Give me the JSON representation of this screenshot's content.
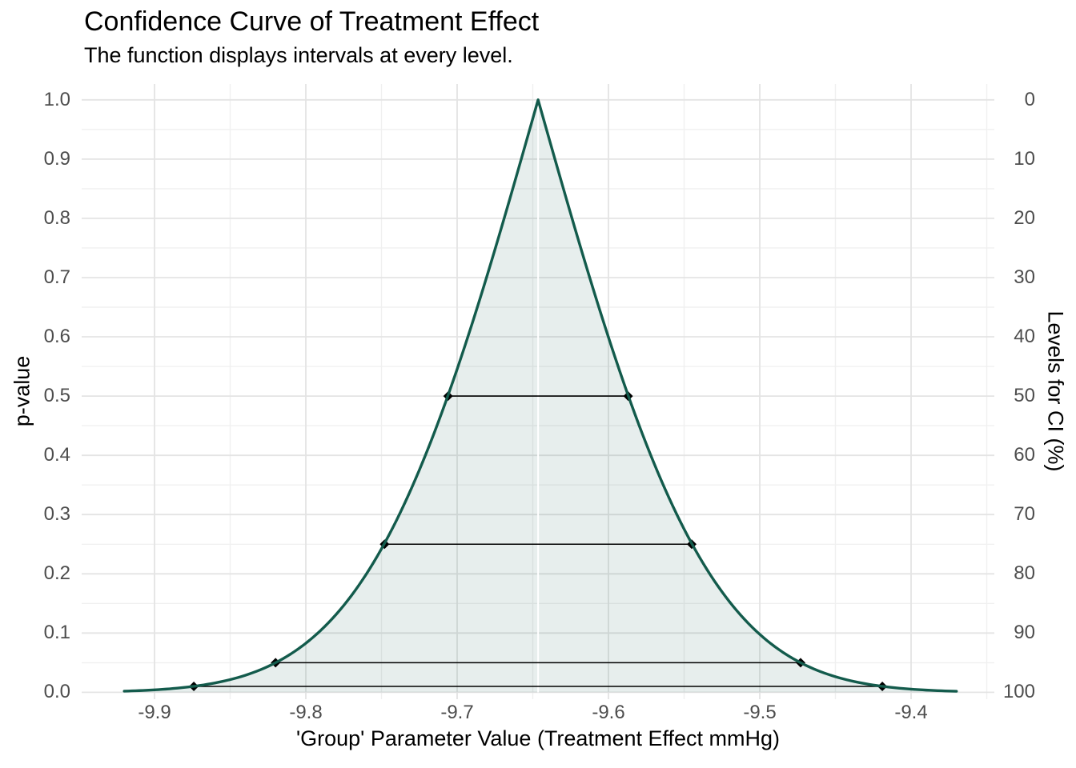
{
  "chart_data": {
    "type": "line",
    "title": "Confidence Curve of Treatment Effect",
    "subtitle": "The function displays intervals at every level.",
    "xlabel": "'Group' Parameter Value (Treatment Effect mmHg)",
    "ylabel_left": "p-value",
    "ylabel_right": "Levels for CI (%)",
    "x_tick_labels": [
      "-9.9",
      "-9.8",
      "-9.7",
      "-9.6",
      "-9.5",
      "-9.4"
    ],
    "y_tick_labels_left": [
      "0.0",
      "0.1",
      "0.2",
      "0.3",
      "0.4",
      "0.5",
      "0.6",
      "0.7",
      "0.8",
      "0.9",
      "1.0"
    ],
    "y_tick_labels_right": [
      "0",
      "10",
      "20",
      "30",
      "40",
      "50",
      "60",
      "70",
      "80",
      "90",
      "100"
    ],
    "ylim": [
      0,
      1
    ],
    "x_range": [
      -9.92,
      -9.37
    ],
    "grid": "major and minor, light gray on white",
    "legend_position": "none",
    "curve": {
      "model": "two-sided p-value function: p(x) = 2*(1 - Phi(|x - estimate| / se))",
      "estimate": -9.6465,
      "se": 0.0885,
      "peak_p_value": 1.0
    },
    "intervals": [
      {
        "ci_level_percent": 50,
        "p_value": 0.5,
        "lower": -9.706,
        "upper": -9.587
      },
      {
        "ci_level_percent": 75,
        "p_value": 0.25,
        "lower": -9.748,
        "upper": -9.545
      },
      {
        "ci_level_percent": 95,
        "p_value": 0.05,
        "lower": -9.82,
        "upper": -9.473
      },
      {
        "ci_level_percent": 99,
        "p_value": 0.01,
        "lower": -9.874,
        "upper": -9.419
      }
    ],
    "colors": {
      "curve": "#135B4C",
      "fill": "rgba(19,91,76,0.10)",
      "interval_line": "#000000",
      "marker": "#000000",
      "estimate_line": "#FFFFFF",
      "grid_major": "#E4E4E4",
      "grid_minor": "#F0F0F0",
      "tick_label": "#4D4D4D",
      "text": "#000000",
      "background": "#FFFFFF"
    }
  }
}
